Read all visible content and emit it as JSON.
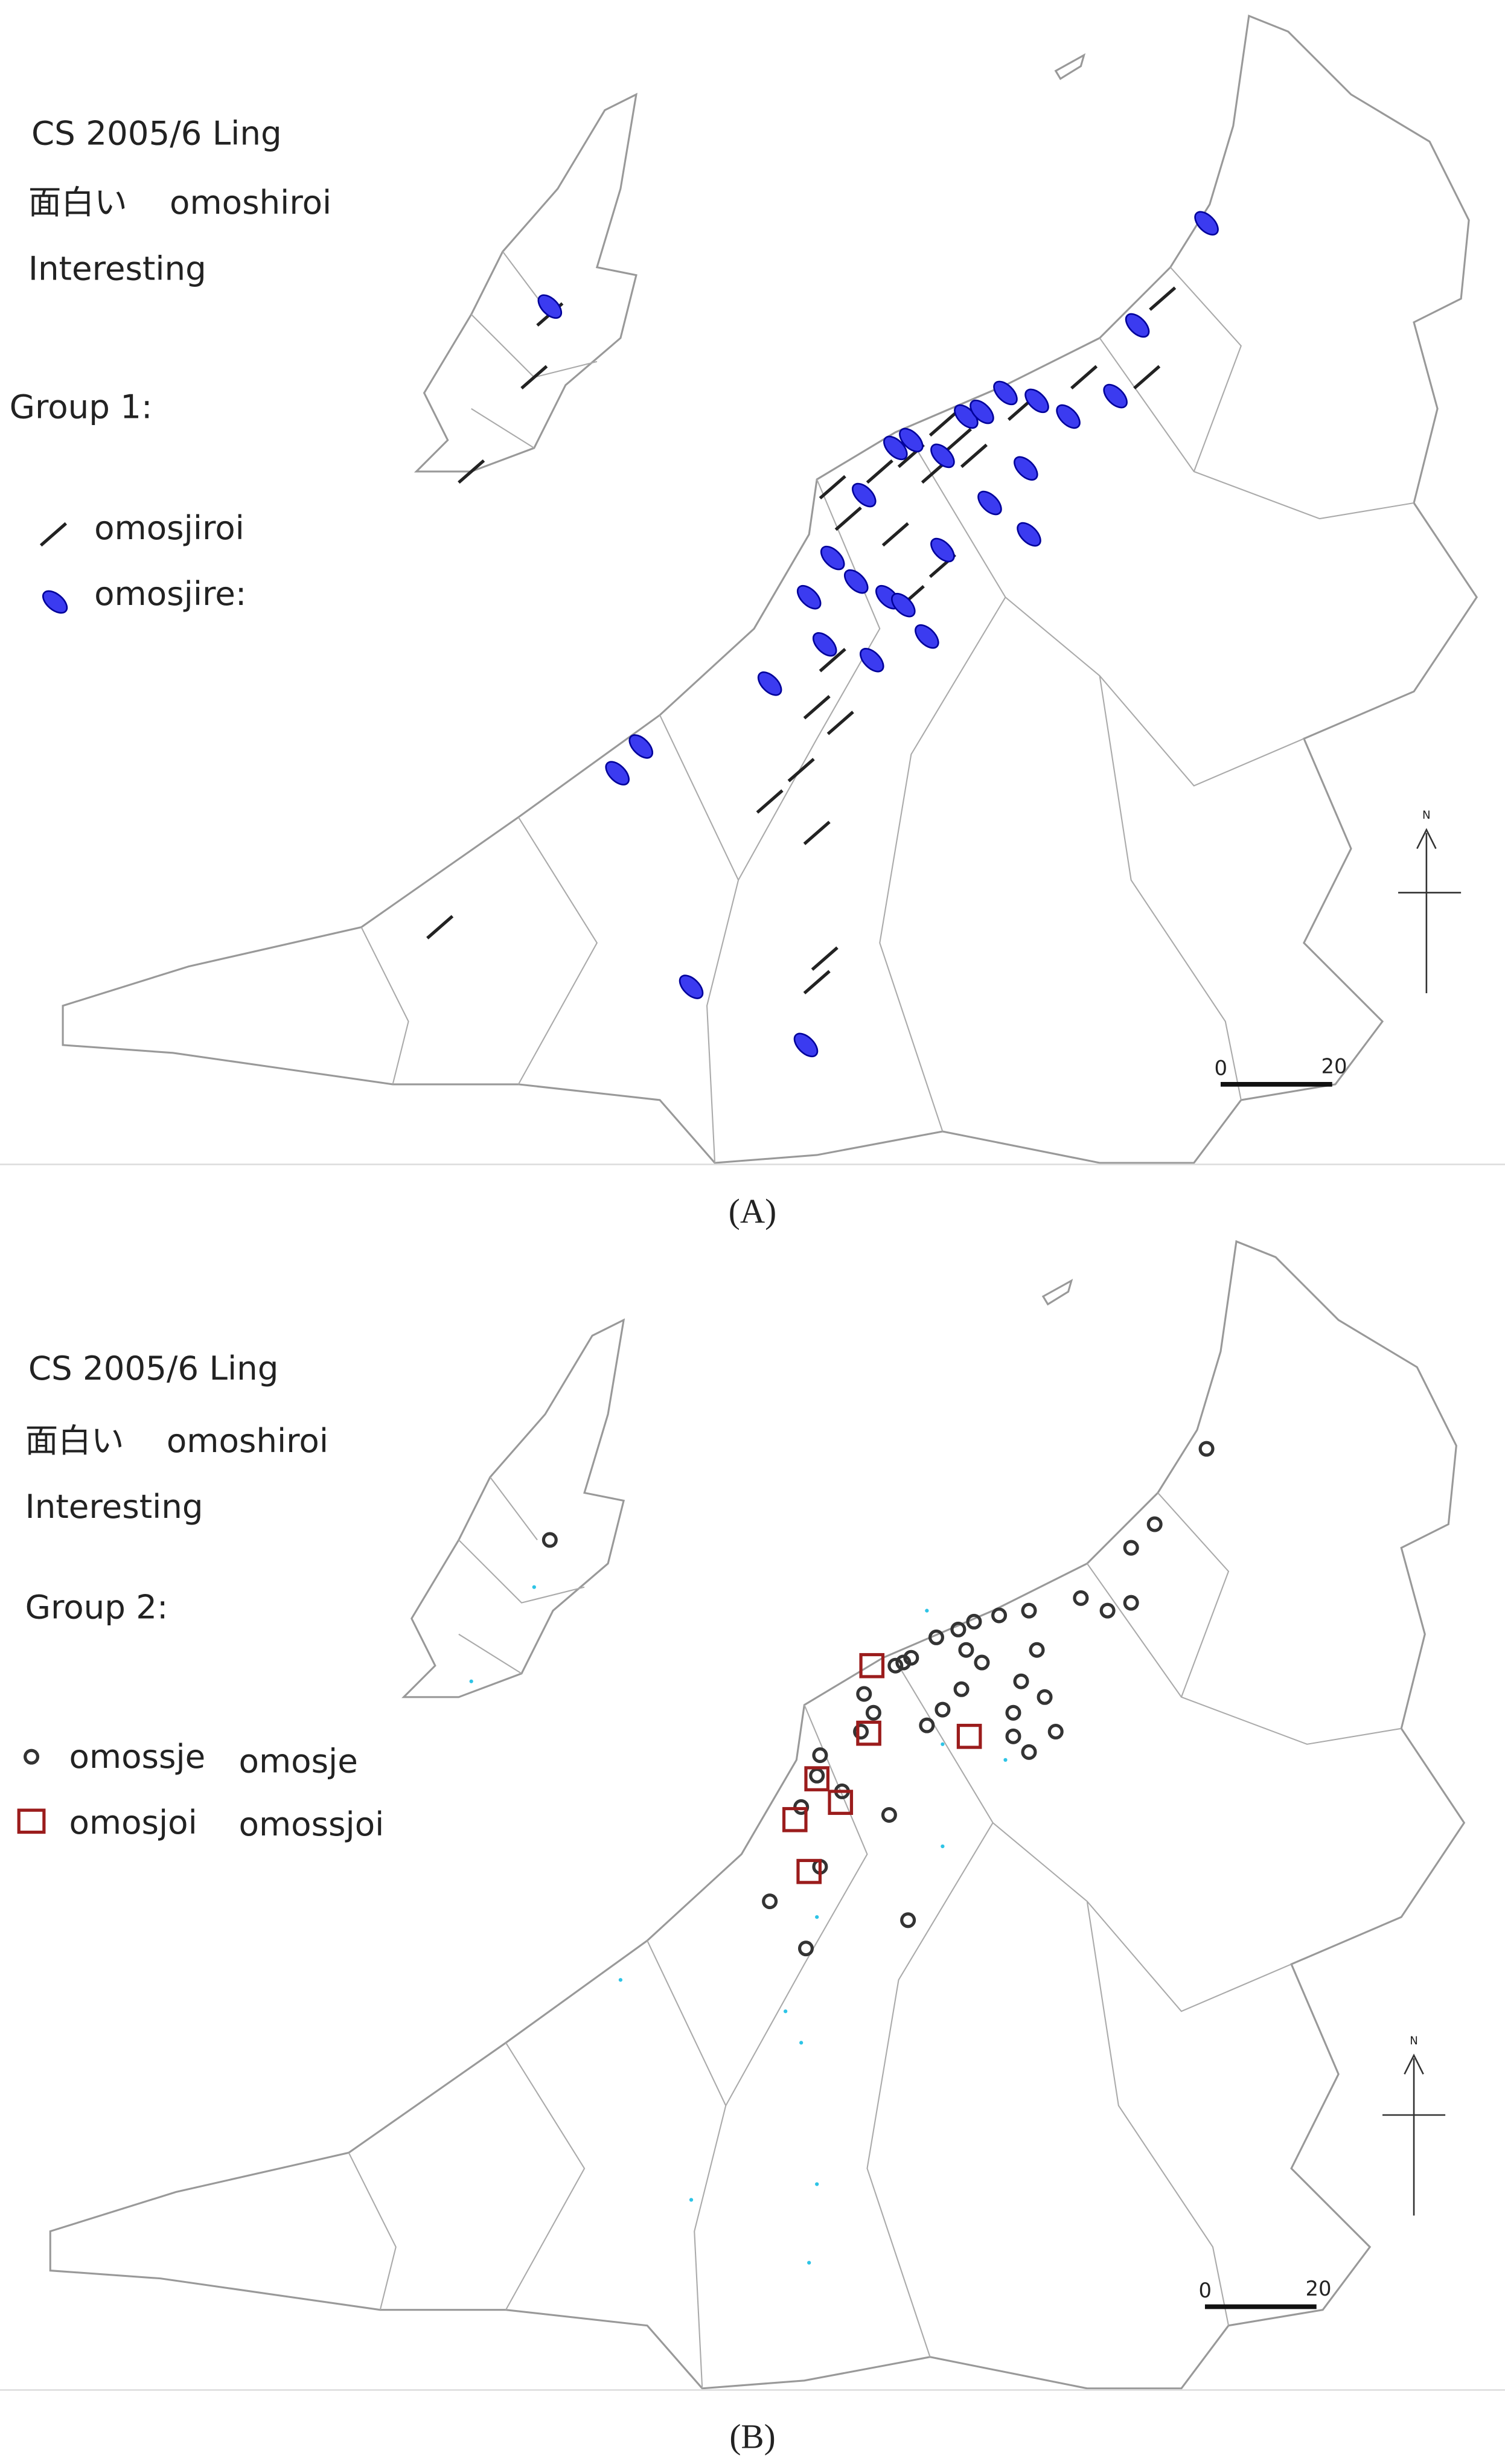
{
  "panels": [
    {
      "title": "CS 2005/6 Ling",
      "word_kanji": "面白い",
      "word_romaji": "omoshiroi",
      "gloss": "Interesting",
      "group": "Group 1:",
      "legend": [
        {
          "label": "omosjiroi"
        },
        {
          "label": "omosjire:"
        }
      ],
      "north": "N",
      "scale": {
        "start": 0,
        "end": 20
      },
      "caption": "(A)"
    },
    {
      "title": "CS 2005/6 Ling",
      "word_kanji": "面白い",
      "word_romaji": "omoshiroi",
      "gloss": "Interesting",
      "group": "Group 2:",
      "legend": [
        {
          "labels": [
            "omossje",
            "omosje"
          ]
        },
        {
          "labels": [
            "omosjoi",
            "omossjoi"
          ]
        }
      ],
      "north": "N",
      "scale": {
        "start": 0,
        "end": 20
      },
      "caption": "(B)"
    }
  ]
}
